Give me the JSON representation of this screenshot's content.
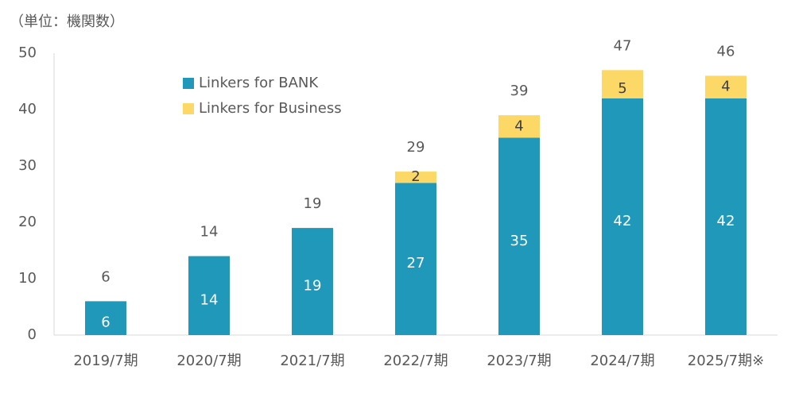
{
  "chart_data": {
    "type": "stacked_bar",
    "unit_label": "（単位：機関数）",
    "categories": [
      "2019/7期",
      "2020/7期",
      "2021/7期",
      "2022/7期",
      "2023/7期",
      "2024/7期",
      "2025/7期※"
    ],
    "series": [
      {
        "name": "Linkers for BANK",
        "color": "#1f98b9",
        "label_color": "#ffffff",
        "values": [
          6,
          14,
          19,
          27,
          35,
          42,
          42
        ]
      },
      {
        "name": "Linkers for Business",
        "color": "#fcd966",
        "label_color": "#404040",
        "values": [
          null,
          null,
          null,
          2,
          4,
          5,
          4
        ]
      }
    ],
    "totals": [
      6,
      14,
      19,
      29,
      39,
      47,
      46
    ],
    "ylim": [
      0,
      50
    ],
    "yticks": [
      0,
      10,
      20,
      30,
      40,
      50
    ],
    "grid": false,
    "legend": "upper-left"
  }
}
